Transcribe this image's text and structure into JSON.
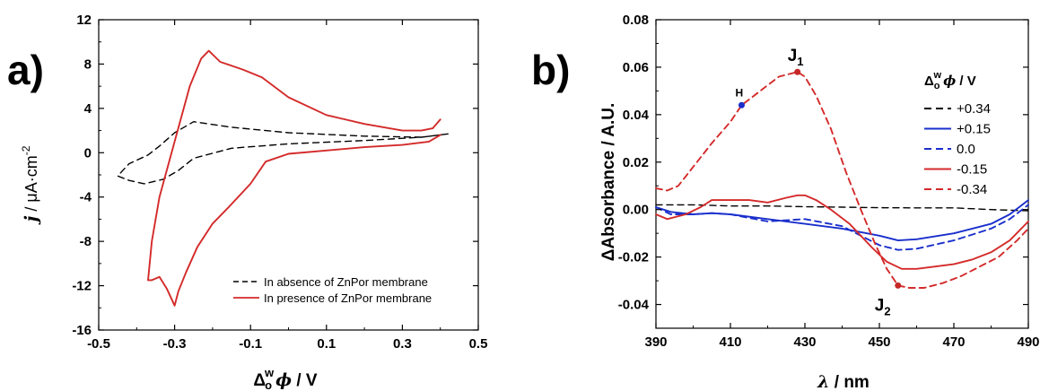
{
  "chart_data": [
    {
      "type": "line",
      "panel_label": "a)",
      "xlabel_sym": "Δ",
      "xlabel_sub": "o",
      "xlabel_sup": "w",
      "xlabel_var": "ϕ",
      "xlabel_unit": " / V",
      "ylabel_var": "j",
      "ylabel_unit": " / μA·cm",
      "ylabel_sup": "-2",
      "xlim": [
        -0.5,
        0.5
      ],
      "ylim": [
        -16,
        12
      ],
      "x_ticks": [
        "-0.5",
        "-0.3",
        "-0.1",
        "0.1",
        "0.3",
        "0.5"
      ],
      "y_ticks": [
        "-16",
        "-12",
        "-8",
        "-4",
        "0",
        "4",
        "8",
        "12"
      ],
      "x_tick_values": [
        -0.5,
        -0.3,
        -0.1,
        0.1,
        0.3,
        0.5
      ],
      "y_tick_values": [
        -16,
        -12,
        -8,
        -4,
        0,
        4,
        8,
        12
      ],
      "legend_position": "bottom-right",
      "series": [
        {
          "name": "In absence of ZnPor membrane",
          "color": "#000000",
          "dash": true,
          "x": [
            0.42,
            0.35,
            0.2,
            0.0,
            -0.15,
            -0.25,
            -0.29,
            -0.33,
            -0.38,
            -0.42,
            -0.45,
            -0.42,
            -0.37,
            -0.34,
            -0.3,
            -0.25,
            -0.15,
            0.0,
            0.2,
            0.35,
            0.42
          ],
          "y": [
            1.7,
            1.4,
            1.1,
            0.8,
            0.4,
            -0.5,
            -1.6,
            -2.4,
            -2.8,
            -2.5,
            -2.1,
            -1.0,
            -0.2,
            0.6,
            1.8,
            2.8,
            2.3,
            1.8,
            1.5,
            1.4,
            1.7
          ]
        },
        {
          "name": "In presence of ZnPor membrane",
          "color": "#d42a2a",
          "dash": false,
          "x": [
            0.4,
            0.37,
            0.3,
            0.2,
            0.1,
            0.0,
            -0.06,
            -0.1,
            -0.16,
            -0.2,
            -0.24,
            -0.27,
            -0.29,
            -0.3,
            -0.32,
            -0.34,
            -0.36,
            -0.37,
            -0.36,
            -0.34,
            -0.3,
            -0.26,
            -0.23,
            -0.21,
            -0.18,
            -0.12,
            -0.07,
            0.0,
            0.1,
            0.2,
            0.3,
            0.35,
            0.38,
            0.4
          ],
          "y": [
            1.6,
            1.0,
            0.7,
            0.5,
            0.2,
            -0.1,
            -0.8,
            -2.8,
            -5.0,
            -6.4,
            -8.5,
            -10.8,
            -12.5,
            -13.8,
            -12.3,
            -11.2,
            -11.5,
            -11.5,
            -8.0,
            -4.0,
            1.0,
            6.0,
            8.5,
            9.2,
            8.2,
            7.5,
            6.8,
            5.0,
            3.4,
            2.6,
            2.0,
            2.0,
            2.2,
            3.0
          ]
        }
      ]
    },
    {
      "type": "line",
      "panel_label": "b)",
      "xlabel_var": "λ",
      "xlabel_unit": " / nm",
      "ylabel": "ΔAbsorbance / A.U.",
      "xlim": [
        390,
        490
      ],
      "ylim": [
        -0.05,
        0.08
      ],
      "x_ticks": [
        "390",
        "410",
        "430",
        "450",
        "470",
        "490"
      ],
      "y_ticks": [
        "-0.04",
        "-0.02",
        "0.00",
        "0.02",
        "0.04",
        "0.06",
        "0.08"
      ],
      "x_tick_values": [
        390,
        410,
        430,
        450,
        470,
        490
      ],
      "y_tick_values": [
        -0.04,
        -0.02,
        0.0,
        0.02,
        0.04,
        0.06,
        0.08
      ],
      "legend_title_sym": "Δ",
      "legend_title_sub": "o",
      "legend_title_sup": "w",
      "legend_title_var": "ϕ",
      "legend_title_unit": " / V",
      "legend_position": "top-right",
      "annotations": [
        {
          "label": "H",
          "x": 413,
          "y": 0.044,
          "color": "#1a2fcc"
        },
        {
          "label": "J",
          "sub": "1",
          "x": 428,
          "y": 0.058,
          "color": "#c62828"
        },
        {
          "label": "J",
          "sub": "2",
          "x": 455,
          "y": -0.032,
          "color": "#c62828"
        }
      ],
      "series": [
        {
          "name": "+0.34",
          "color": "#000000",
          "dash": true,
          "x": [
            390,
            400,
            410,
            420,
            430,
            440,
            450,
            460,
            470,
            480,
            490
          ],
          "y": [
            0.002,
            0.002,
            0.0015,
            0.0015,
            0.0012,
            0.001,
            0.0008,
            0.0007,
            0.0007,
            0.0,
            -0.0005
          ]
        },
        {
          "name": "+0.15",
          "color": "#1a2fcc",
          "dash": false,
          "x": [
            390,
            394,
            400,
            405,
            410,
            420,
            430,
            440,
            450,
            455,
            460,
            470,
            480,
            485,
            490
          ],
          "y": [
            0.001,
            -0.001,
            -0.002,
            -0.0015,
            -0.002,
            -0.004,
            -0.006,
            -0.008,
            -0.011,
            -0.013,
            -0.0125,
            -0.01,
            -0.006,
            -0.002,
            0.004
          ]
        },
        {
          "name": "0.0",
          "color": "#1a2fcc",
          "dash": true,
          "x": [
            390,
            394,
            400,
            405,
            410,
            420,
            430,
            440,
            450,
            455,
            460,
            470,
            480,
            485,
            490
          ],
          "y": [
            0.001,
            -0.002,
            -0.002,
            -0.0015,
            -0.002,
            -0.005,
            -0.004,
            -0.007,
            -0.015,
            -0.017,
            -0.0165,
            -0.013,
            -0.008,
            -0.004,
            0.002
          ]
        },
        {
          "name": "-0.15",
          "color": "#d42a2a",
          "dash": false,
          "x": [
            390,
            393,
            398,
            402,
            405,
            410,
            415,
            420,
            425,
            428,
            430,
            433,
            437,
            442,
            448,
            452,
            456,
            460,
            465,
            470,
            475,
            480,
            485,
            490
          ],
          "y": [
            -0.002,
            -0.004,
            -0.002,
            0.001,
            0.004,
            0.004,
            0.004,
            0.003,
            0.005,
            0.006,
            0.006,
            0.004,
            0.0,
            -0.006,
            -0.016,
            -0.022,
            -0.025,
            -0.025,
            -0.024,
            -0.023,
            -0.021,
            -0.018,
            -0.013,
            -0.005
          ]
        },
        {
          "name": "-0.34",
          "color": "#d42a2a",
          "dash": true,
          "x": [
            390,
            393,
            396,
            400,
            405,
            410,
            413,
            418,
            423,
            428,
            430,
            433,
            437,
            441,
            445,
            449,
            452,
            455,
            458,
            462,
            467,
            472,
            477,
            482,
            487,
            490
          ],
          "y": [
            0.009,
            0.008,
            0.01,
            0.018,
            0.028,
            0.037,
            0.044,
            0.05,
            0.056,
            0.058,
            0.056,
            0.048,
            0.034,
            0.016,
            0.0,
            -0.015,
            -0.025,
            -0.032,
            -0.033,
            -0.033,
            -0.031,
            -0.028,
            -0.024,
            -0.02,
            -0.013,
            -0.008
          ]
        }
      ]
    }
  ]
}
